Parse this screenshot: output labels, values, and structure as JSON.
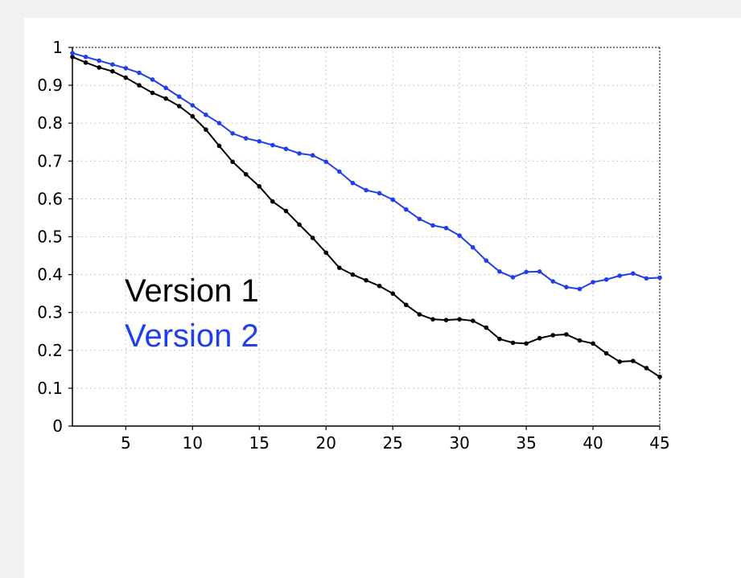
{
  "chart_data": {
    "type": "line",
    "title": "",
    "xlabel": "",
    "ylabel": "",
    "xlim": [
      1,
      45
    ],
    "ylim": [
      0,
      1
    ],
    "xticks": [
      5,
      10,
      15,
      20,
      25,
      30,
      35,
      40,
      45
    ],
    "yticks": [
      0,
      0.1,
      0.2,
      0.3,
      0.4,
      0.5,
      0.6,
      0.7,
      0.8,
      0.9,
      1
    ],
    "ytick_labels": [
      "0",
      "0.1",
      "0.2",
      "0.3",
      "0.4",
      "0.5",
      "0.6",
      "0.7",
      "0.8",
      "0.9",
      "1"
    ],
    "grid": true,
    "legend_position": "center-left",
    "x": [
      1,
      2,
      3,
      4,
      5,
      6,
      7,
      8,
      9,
      10,
      11,
      12,
      13,
      14,
      15,
      16,
      17,
      18,
      19,
      20,
      21,
      22,
      23,
      24,
      25,
      26,
      27,
      28,
      29,
      30,
      31,
      32,
      33,
      34,
      35,
      36,
      37,
      38,
      39,
      40,
      41,
      42,
      43,
      44,
      45
    ],
    "series": [
      {
        "name": "Version 1",
        "color": "#000000",
        "values": [
          0.975,
          0.96,
          0.947,
          0.937,
          0.92,
          0.9,
          0.88,
          0.865,
          0.845,
          0.818,
          0.783,
          0.74,
          0.698,
          0.665,
          0.633,
          0.593,
          0.568,
          0.532,
          0.497,
          0.458,
          0.418,
          0.4,
          0.385,
          0.37,
          0.35,
          0.32,
          0.295,
          0.282,
          0.28,
          0.282,
          0.278,
          0.26,
          0.23,
          0.22,
          0.218,
          0.232,
          0.24,
          0.242,
          0.226,
          0.218,
          0.192,
          0.17,
          0.172,
          0.153,
          0.13
        ]
      },
      {
        "name": "Version 2",
        "color": "#1f3fe8",
        "values": [
          0.985,
          0.975,
          0.965,
          0.955,
          0.945,
          0.933,
          0.915,
          0.893,
          0.87,
          0.847,
          0.822,
          0.8,
          0.773,
          0.76,
          0.752,
          0.742,
          0.732,
          0.72,
          0.715,
          0.698,
          0.672,
          0.642,
          0.623,
          0.615,
          0.598,
          0.572,
          0.547,
          0.53,
          0.523,
          0.503,
          0.472,
          0.437,
          0.408,
          0.393,
          0.407,
          0.408,
          0.382,
          0.367,
          0.362,
          0.38,
          0.387,
          0.397,
          0.403,
          0.39,
          0.392
        ]
      }
    ]
  }
}
